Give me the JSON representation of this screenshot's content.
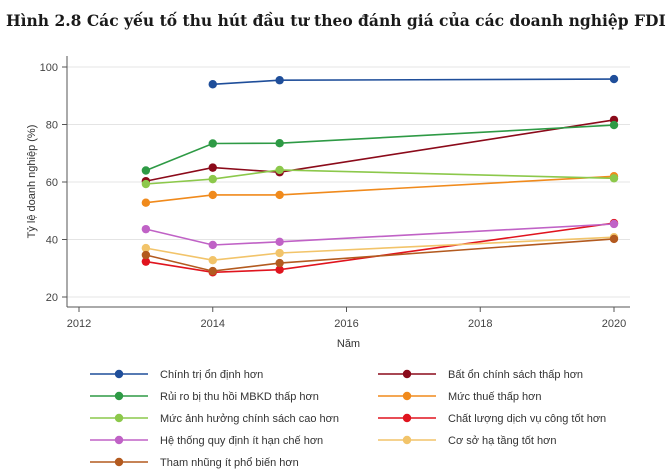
{
  "title": "Hình 2.8 Các yếu tố thu hút đầu tư theo đánh giá của các doanh nghiệp FDI",
  "chart_data": {
    "type": "line",
    "xlabel": "Năm",
    "ylabel": "Tỷ lệ doanh nghiệp (%)",
    "xlim": [
      2012,
      2020
    ],
    "ylim": [
      20,
      100
    ],
    "xticks": [
      2012,
      2014,
      2016,
      2018,
      2020
    ],
    "yticks": [
      20,
      40,
      60,
      80,
      100
    ],
    "grid": true,
    "legend_position": "bottom",
    "series": [
      {
        "name": "Chính trị ổn định hơn",
        "color": "#1f4e9a",
        "points": [
          [
            2014,
            94.0
          ],
          [
            2015,
            95.4
          ],
          [
            2020,
            95.8
          ]
        ]
      },
      {
        "name": "Bất ổn chính sách thấp hơn",
        "color": "#8b0a1a",
        "points": [
          [
            2013,
            60.3
          ],
          [
            2014,
            65.0
          ],
          [
            2015,
            63.4
          ],
          [
            2020,
            81.6
          ]
        ]
      },
      {
        "name": "Rủi ro bị thu hồi MBKD thấp hơn",
        "color": "#2e9a45",
        "points": [
          [
            2013,
            64.0
          ],
          [
            2014,
            73.4
          ],
          [
            2015,
            73.5
          ],
          [
            2020,
            79.8
          ]
        ]
      },
      {
        "name": "Mức thuế thấp hơn",
        "color": "#f08a1c",
        "points": [
          [
            2013,
            52.8
          ],
          [
            2014,
            55.5
          ],
          [
            2015,
            55.5
          ],
          [
            2020,
            62.0
          ]
        ]
      },
      {
        "name": "Mức ảnh hưởng chính sách cao hơn",
        "color": "#8cc84b",
        "points": [
          [
            2013,
            59.3
          ],
          [
            2014,
            61.0
          ],
          [
            2015,
            64.2
          ],
          [
            2020,
            61.3
          ]
        ]
      },
      {
        "name": "Chất lượng dịch vụ công tốt hơn",
        "color": "#e0141e",
        "points": [
          [
            2013,
            32.3
          ],
          [
            2014,
            28.6
          ],
          [
            2015,
            29.5
          ],
          [
            2020,
            45.7
          ]
        ]
      },
      {
        "name": "Hệ thống quy định ít hạn chế hơn",
        "color": "#c062c6",
        "points": [
          [
            2013,
            43.6
          ],
          [
            2014,
            38.1
          ],
          [
            2015,
            39.2
          ],
          [
            2020,
            45.4
          ]
        ]
      },
      {
        "name": "Cơ sở hạ tầng tốt hơn",
        "color": "#f2c46a",
        "points": [
          [
            2013,
            37.0
          ],
          [
            2014,
            32.8
          ],
          [
            2015,
            35.3
          ],
          [
            2020,
            40.8
          ]
        ]
      },
      {
        "name": "Tham nhũng ít phổ biến hơn",
        "color": "#b35a1f",
        "points": [
          [
            2013,
            34.6
          ],
          [
            2014,
            29.0
          ],
          [
            2015,
            31.8
          ],
          [
            2020,
            40.2
          ]
        ]
      }
    ]
  }
}
